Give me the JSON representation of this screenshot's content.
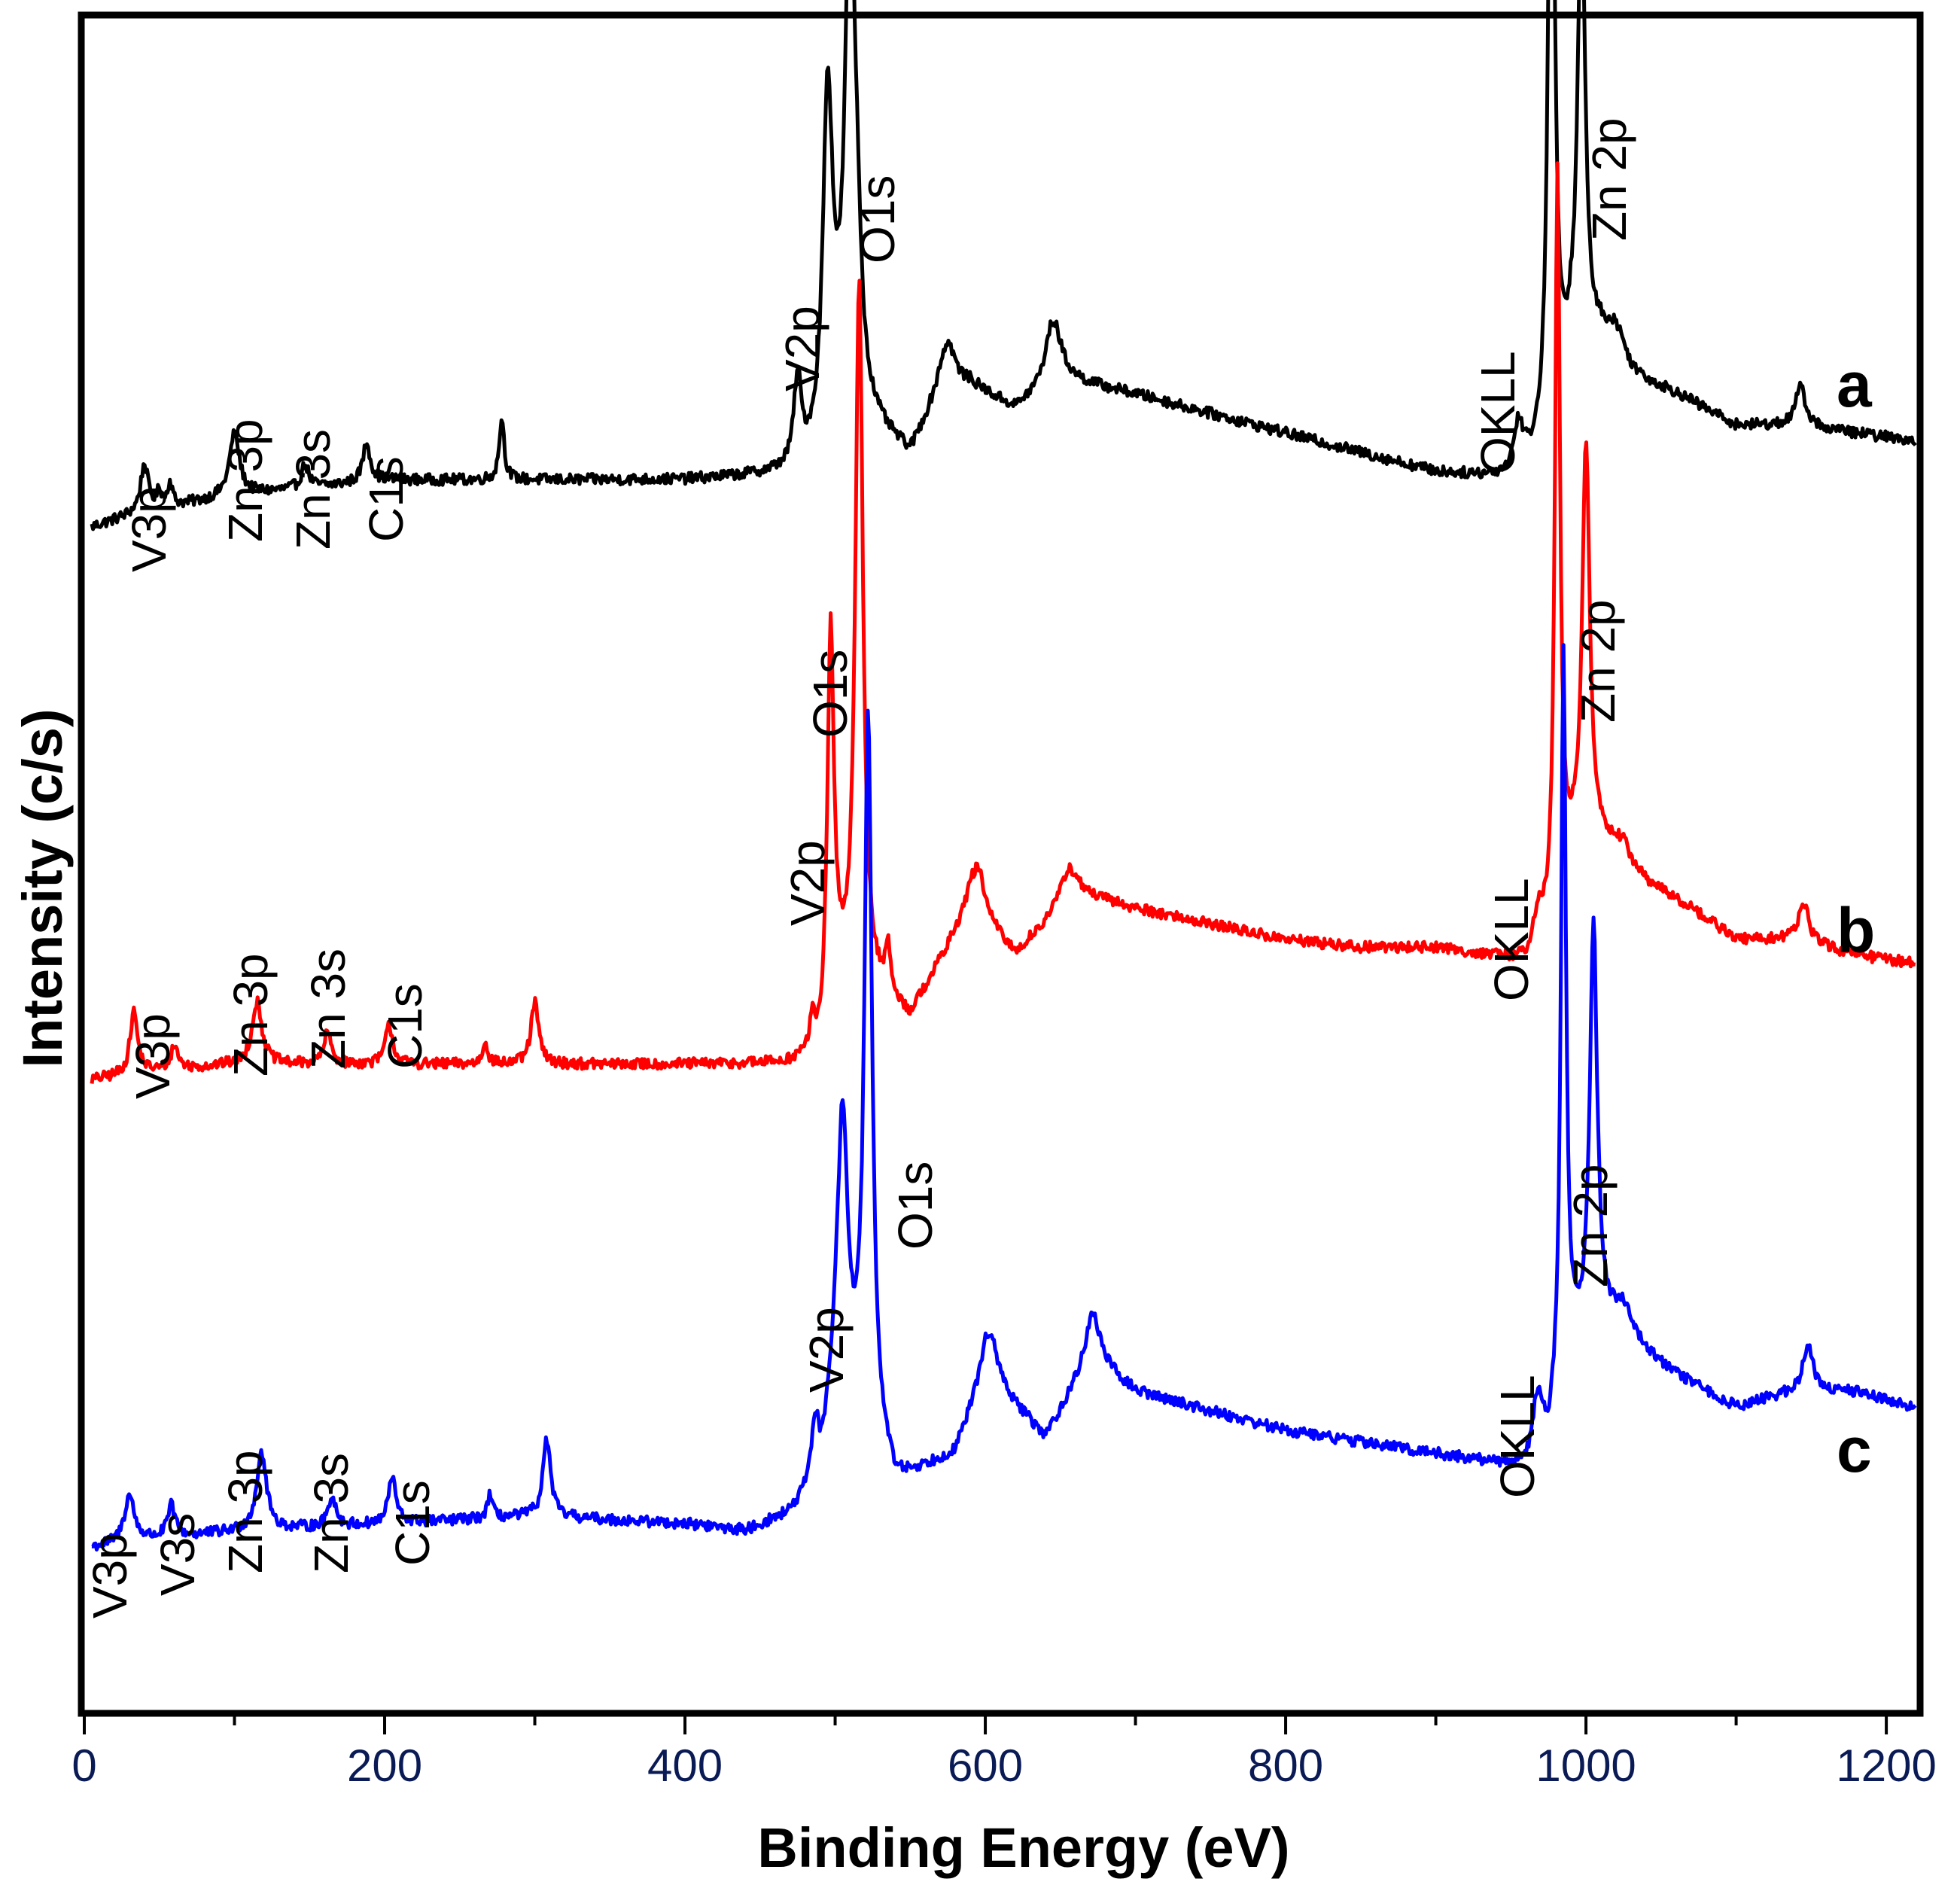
{
  "chart_data": {
    "type": "line",
    "title": "",
    "xlabel": "Binding Energy (eV)",
    "ylabel": "Intensity (c/s)",
    "xlim": [
      0,
      1220
    ],
    "ylim": [
      0,
      100
    ],
    "xticks": [
      "0",
      "200",
      "400",
      "600",
      "800",
      "1000",
      "1200"
    ],
    "xtick_values": [
      0,
      200,
      400,
      600,
      800,
      1000,
      1200
    ],
    "minor_tick_step": 100,
    "grid": false,
    "y_tick_labels": "none",
    "series": [
      {
        "name": "a",
        "color": "#000000",
        "offset": 68,
        "baseline": [
          [
            5,
            3.5
          ],
          [
            40,
            4.5
          ],
          [
            100,
            5.5
          ],
          [
            200,
            6.5
          ],
          [
            300,
            6.5
          ],
          [
            400,
            6.5
          ],
          [
            470,
            6.8
          ],
          [
            490,
            7.2
          ],
          [
            500,
            10
          ],
          [
            520,
            10
          ],
          [
            550,
            8
          ],
          [
            570,
            12
          ],
          [
            590,
            12.5
          ],
          [
            620,
            11
          ],
          [
            650,
            13
          ],
          [
            700,
            12
          ],
          [
            800,
            9.5
          ],
          [
            900,
            7
          ],
          [
            950,
            6.5
          ],
          [
            975,
            8
          ],
          [
            990,
            14
          ],
          [
            1010,
            15
          ],
          [
            1030,
            13
          ],
          [
            1060,
            12
          ],
          [
            1100,
            10
          ],
          [
            1140,
            10
          ],
          [
            1180,
            9.5
          ],
          [
            1220,
            9
          ]
        ],
        "peaks": [
          [
            40,
            3,
            3
          ],
          [
            50,
            1,
            2
          ],
          [
            57,
            1.5,
            2
          ],
          [
            100,
            4,
            4
          ],
          [
            147,
            1.5,
            3
          ],
          [
            188,
            2.5,
            3
          ],
          [
            278,
            4,
            2
          ],
          [
            475,
            5.5,
            3
          ],
          [
            495,
            22,
            4
          ],
          [
            510,
            34,
            4
          ],
          [
            515,
            5,
            3
          ],
          [
            575,
            3,
            6
          ],
          [
            645,
            4,
            6
          ],
          [
            955,
            3,
            4
          ],
          [
            977,
            50,
            2.5
          ],
          [
            997,
            29,
            3
          ],
          [
            1020,
            2,
            8
          ],
          [
            1143,
            2.5,
            4
          ]
        ],
        "noise": 0.35
      },
      {
        "name": "b",
        "color": "#ff0000",
        "offset": 34,
        "baseline": [
          [
            5,
            2
          ],
          [
            40,
            2.5
          ],
          [
            100,
            3
          ],
          [
            200,
            3
          ],
          [
            300,
            3
          ],
          [
            400,
            3
          ],
          [
            470,
            3
          ],
          [
            490,
            3.5
          ],
          [
            500,
            8
          ],
          [
            520,
            8
          ],
          [
            550,
            6
          ],
          [
            590,
            13
          ],
          [
            620,
            10
          ],
          [
            660,
            14
          ],
          [
            700,
            13
          ],
          [
            800,
            11
          ],
          [
            850,
            10.5
          ],
          [
            900,
            10.5
          ],
          [
            960,
            9.5
          ],
          [
            975,
            11
          ],
          [
            990,
            16
          ],
          [
            1010,
            17
          ],
          [
            1030,
            15
          ],
          [
            1070,
            13
          ],
          [
            1100,
            11
          ],
          [
            1140,
            11
          ],
          [
            1180,
            10
          ],
          [
            1220,
            9.5
          ]
        ],
        "peaks": [
          [
            33,
            4,
            3
          ],
          [
            60,
            1.5,
            3
          ],
          [
            115,
            4,
            4
          ],
          [
            162,
            2,
            3
          ],
          [
            203,
            2.5,
            3
          ],
          [
            267,
            1.5,
            2
          ],
          [
            300,
            4,
            3
          ],
          [
            485,
            2,
            2
          ],
          [
            497,
            24,
            2.5
          ],
          [
            516,
            45,
            3
          ],
          [
            535,
            3,
            2
          ],
          [
            595,
            3,
            6
          ],
          [
            655,
            2,
            6
          ],
          [
            968,
            2,
            4
          ],
          [
            981,
            47,
            2
          ],
          [
            1000,
            26,
            3
          ],
          [
            1025,
            1.5,
            8
          ],
          [
            1145,
            2.5,
            4
          ]
        ],
        "noise": 0.35
      },
      {
        "name": "c",
        "color": "#0000ff",
        "offset": 0,
        "baseline": [
          [
            5,
            6
          ],
          [
            40,
            6.5
          ],
          [
            100,
            7
          ],
          [
            200,
            7.5
          ],
          [
            300,
            8
          ],
          [
            400,
            7.5
          ],
          [
            440,
            7
          ],
          [
            470,
            8
          ],
          [
            490,
            10
          ],
          [
            500,
            16
          ],
          [
            520,
            14
          ],
          [
            540,
            10
          ],
          [
            580,
            12
          ],
          [
            600,
            17
          ],
          [
            640,
            13
          ],
          [
            670,
            18
          ],
          [
            700,
            16
          ],
          [
            800,
            13.5
          ],
          [
            900,
            12
          ],
          [
            960,
            11
          ],
          [
            975,
            12
          ],
          [
            990,
            18
          ],
          [
            1010,
            20
          ],
          [
            1030,
            19
          ],
          [
            1060,
            17
          ],
          [
            1100,
            15
          ],
          [
            1140,
            16
          ],
          [
            1180,
            16
          ],
          [
            1220,
            15
          ]
        ],
        "peaks": [
          [
            30,
            3,
            4
          ],
          [
            58,
            2,
            3
          ],
          [
            118,
            5,
            4
          ],
          [
            165,
            2,
            3
          ],
          [
            205,
            3,
            3
          ],
          [
            270,
            1.5,
            2
          ],
          [
            308,
            5,
            3
          ],
          [
            487,
            4,
            3
          ],
          [
            505,
            18,
            4
          ],
          [
            522,
            45,
            3
          ],
          [
            603,
            3,
            6
          ],
          [
            672,
            3,
            6
          ],
          [
            968,
            4,
            4
          ],
          [
            985,
            47,
            2
          ],
          [
            1005,
            26,
            3
          ],
          [
            1025,
            2,
            8
          ],
          [
            1148,
            3,
            4
          ]
        ],
        "noise": 0.35
      }
    ],
    "annotations": [
      {
        "text": "V3p",
        "series": "a"
      },
      {
        "text": "Zn 3p",
        "series": "a"
      },
      {
        "text": "Zn 3s",
        "series": "a"
      },
      {
        "text": "C1s",
        "series": "a"
      },
      {
        "text": "V2p",
        "series": "a"
      },
      {
        "text": "O1s",
        "series": "a"
      },
      {
        "text": "OKLL",
        "series": "a"
      },
      {
        "text": "Zn 2p",
        "series": "a"
      },
      {
        "text": "V3p",
        "series": "b"
      },
      {
        "text": "Zn 3p",
        "series": "b"
      },
      {
        "text": "Zn 3s",
        "series": "b"
      },
      {
        "text": "C1s",
        "series": "b"
      },
      {
        "text": "V2p",
        "series": "b"
      },
      {
        "text": "O1s",
        "series": "b"
      },
      {
        "text": "OKLL",
        "series": "b"
      },
      {
        "text": "Zn 2p",
        "series": "b"
      },
      {
        "text": "V3p",
        "series": "c"
      },
      {
        "text": "V3s",
        "series": "c"
      },
      {
        "text": "Zn 3p",
        "series": "c"
      },
      {
        "text": "Zn 3s",
        "series": "c"
      },
      {
        "text": "C1s",
        "series": "c"
      },
      {
        "text": "V2p",
        "series": "c"
      },
      {
        "text": "O1s",
        "series": "c"
      },
      {
        "text": "OKLL",
        "series": "c"
      },
      {
        "text": "Zn 2p",
        "series": "c"
      }
    ],
    "series_tags": [
      "a",
      "b",
      "c"
    ]
  }
}
